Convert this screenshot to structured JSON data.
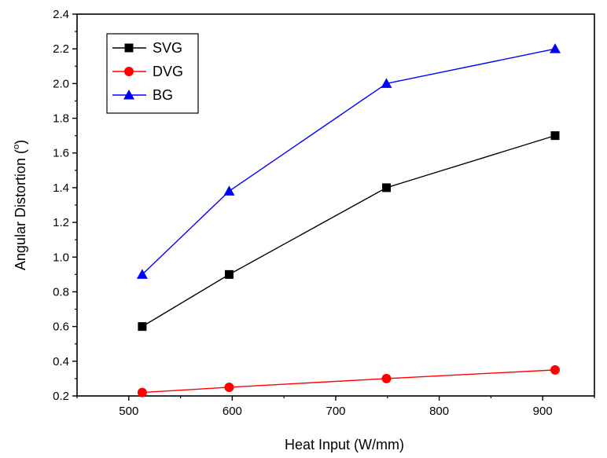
{
  "chart_data": {
    "type": "line",
    "xlabel": "Heat Input (W/mm)",
    "ylabel_main": "Angular Distortion (",
    "ylabel_sup": "o",
    "ylabel_end": ")",
    "xlim": [
      450,
      950
    ],
    "ylim": [
      0.2,
      2.4
    ],
    "xticks": [
      500,
      600,
      700,
      800,
      900
    ],
    "xtick_labels": [
      "500",
      "600",
      "700",
      "800",
      "900"
    ],
    "yticks": [
      0.2,
      0.4,
      0.6,
      0.8,
      1.0,
      1.2,
      1.4,
      1.6,
      1.8,
      2.0,
      2.2,
      2.4
    ],
    "ytick_labels": [
      "0.2",
      "0.4",
      "0.6",
      "0.8",
      "1.0",
      "1.2",
      "1.4",
      "1.6",
      "1.8",
      "2.0",
      "2.2",
      "2.4"
    ],
    "legend_position": "top-left",
    "grid": false,
    "series": [
      {
        "name": "SVG",
        "color": "#000000",
        "marker": "square",
        "x": [
          513,
          597,
          749,
          912
        ],
        "y": [
          0.6,
          0.9,
          1.4,
          1.7
        ]
      },
      {
        "name": "DVG",
        "color": "#ff0000",
        "marker": "circle",
        "x": [
          513,
          597,
          749,
          912
        ],
        "y": [
          0.22,
          0.25,
          0.3,
          0.35
        ]
      },
      {
        "name": "BG",
        "color": "#0000ff",
        "marker": "triangle",
        "x": [
          513,
          597,
          749,
          912
        ],
        "y": [
          0.9,
          1.38,
          2.0,
          2.2
        ]
      }
    ]
  }
}
